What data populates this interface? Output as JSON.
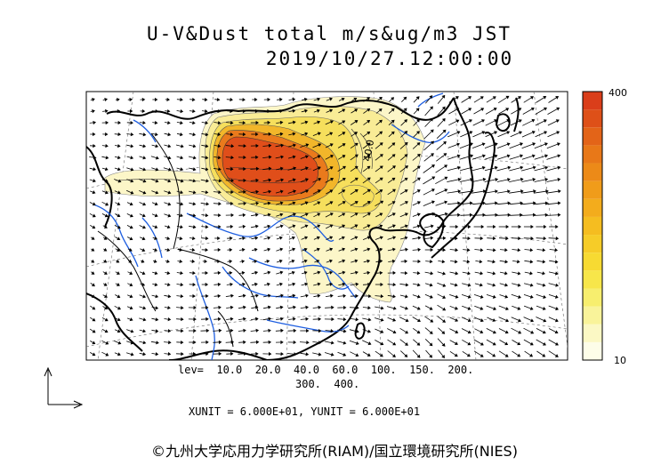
{
  "header": {
    "title": "U-V&Dust total m/s&ug/m3 JST",
    "datetime": "2019/10/27.12:00:00"
  },
  "colorbar": {
    "max_label": "400",
    "min_label": "10",
    "colors": [
      "#fdfde8",
      "#fbf8c4",
      "#f9f39a",
      "#f7ee6e",
      "#f7e64a",
      "#f7da32",
      "#f6cc28",
      "#f5bd20",
      "#f3ac1c",
      "#f09c1a",
      "#ec8a18",
      "#e87818",
      "#e36418",
      "#de5018",
      "#da3e1a"
    ]
  },
  "contour_label": "40.0",
  "levels_line1": "lev=  10.0  20.0  40.0  60.0  100.  150.  200.",
  "levels_line2": "300.  400.",
  "units_line": "XUNIT = 6.000E+01, YUNIT = 6.000E+01",
  "copyright": "©九州大学応用力学研究所(RIAM)/国立環境研究所(NIES)",
  "colors": {
    "coast": "#000000",
    "rivers": "#1f5fe0",
    "dust_low": "#fbf3b8",
    "dust_high": "#e8501a"
  }
}
